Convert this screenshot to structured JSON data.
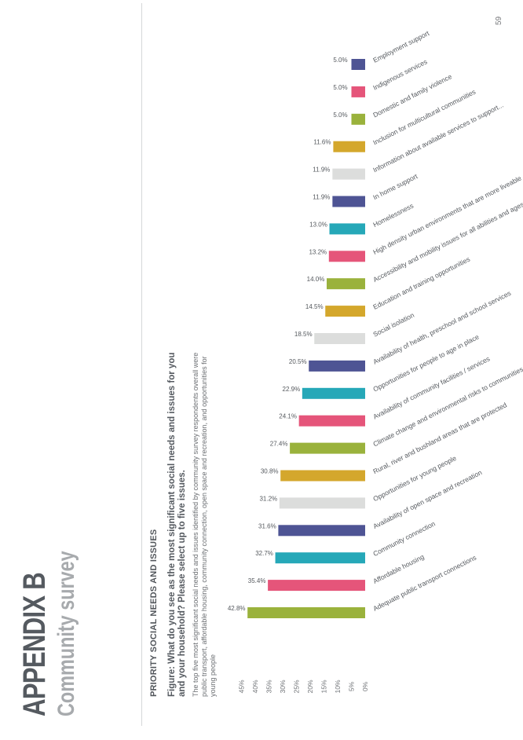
{
  "header": {
    "appendix": "APPENDIX B",
    "subtitle": "Community survey"
  },
  "section": {
    "heading": "PRIORITY SOCIAL NEEDS AND ISSUES",
    "figure_title": "Figure: What do you see as the most significant social needs and issues for you and your household? Please select up to five issues.",
    "intro": "The top five most significant social needs and issues identified by community survey respondents overall were public transport, affordable housing, community connection, open space and recreation, and opportunities for young people"
  },
  "page_number": "59",
  "chart_data": {
    "type": "bar",
    "categories": [
      "Adequate public transport connections",
      "Affordable housing",
      "Community connection",
      "Availability of open space and recreation",
      "Opportunities for young people",
      "Rural, river and bushland areas that are protected",
      "Climate change and environmental risks to communities",
      "Availability of community facilities / services",
      "Opportunities for people to age in place",
      "Availability of health, preschool and school services",
      "Social isolation",
      "Education and training opportunities",
      "Accessibility and mobility issues for all abilities and ages",
      "High density urban environments that are more liveable",
      "Homelessness",
      "In home support",
      "Information about available services to support...",
      "Inclusion for multicultural communities",
      "Domestic and family violence",
      "Indigenous services",
      "Employment support"
    ],
    "values": [
      42.8,
      35.4,
      32.7,
      31.6,
      31.2,
      30.8,
      27.4,
      24.1,
      22.9,
      20.5,
      18.5,
      14.5,
      14.0,
      13.2,
      13.0,
      11.9,
      11.9,
      11.6,
      5.0,
      5.0,
      5.0
    ],
    "value_labels": [
      "42.8%",
      "35.4%",
      "32.7%",
      "31.6%",
      "31.2%",
      "30.8%",
      "27.4%",
      "24.1%",
      "22.9%",
      "20.5%",
      "18.5%",
      "14.5%",
      "14.0%",
      "13.2%",
      "13.0%",
      "11.9%",
      "11.9%",
      "11.6%",
      "5.0%",
      "5.0%",
      "5.0%"
    ],
    "colors": [
      "#9ab23c",
      "#e5557a",
      "#26a8b8",
      "#4e5494",
      "#dcdddc",
      "#d4a72c",
      "#9ab23c",
      "#e5557a",
      "#26a8b8",
      "#4e5494",
      "#dcdddc",
      "#d4a72c",
      "#9ab23c",
      "#e5557a",
      "#26a8b8",
      "#4e5494",
      "#dcdddc",
      "#d4a72c",
      "#9ab23c",
      "#e5557a",
      "#4e5494"
    ],
    "y_ticks": [
      "0%",
      "5%",
      "10%",
      "15%",
      "20%",
      "25%",
      "30%",
      "35%",
      "40%",
      "45%"
    ],
    "ylim": [
      0,
      45
    ],
    "grid": false,
    "legend": "none"
  }
}
